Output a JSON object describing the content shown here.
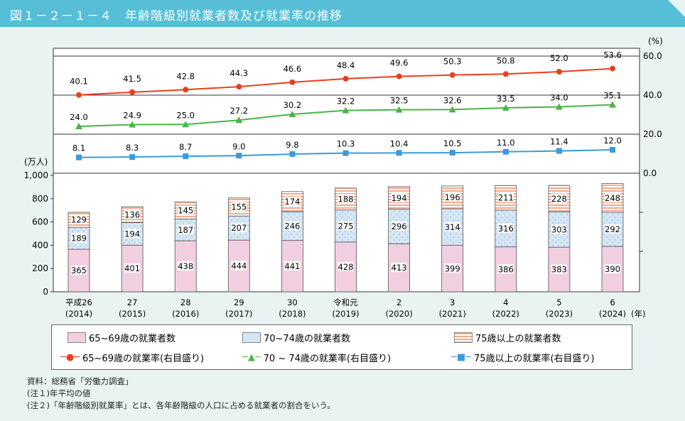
{
  "title": "図１－２－１－４　年齢階級別就業者数及び就業率の推移",
  "chart_data": {
    "type": "bar+line",
    "categories": [
      [
        "平成26",
        "(2014)"
      ],
      [
        "27",
        "(2015)"
      ],
      [
        "28",
        "(2016)"
      ],
      [
        "29",
        "(2017)"
      ],
      [
        "30",
        "(2018)"
      ],
      [
        "令和元",
        "(2019)"
      ],
      [
        "2",
        "(2020)"
      ],
      [
        "3",
        "(2021)"
      ],
      [
        "4",
        "(2022)"
      ],
      [
        "5",
        "(2023)"
      ],
      [
        "6",
        "(2024)"
      ]
    ],
    "x_unit": "(年)",
    "left_axis": {
      "label": "(万人)",
      "ticks": [
        "0",
        "200",
        "400",
        "600",
        "800",
        "1,000"
      ],
      "range": [
        0,
        1000
      ]
    },
    "right_axis": {
      "label": "(%)",
      "ticks": [
        "0.0",
        "20.0",
        "40.0",
        "60.0"
      ],
      "range": [
        0,
        60
      ]
    },
    "bar_series": [
      {
        "name": "65~69歳の就業者数",
        "color": "#f2cfe0",
        "values": [
          365,
          401,
          438,
          444,
          441,
          428,
          413,
          399,
          386,
          383,
          390
        ]
      },
      {
        "name": "70~74歳の就業者数",
        "color": "#d5e6f4",
        "values": [
          189,
          194,
          187,
          207,
          246,
          275,
          296,
          314,
          316,
          303,
          292
        ]
      },
      {
        "name": "75歳以上の就業者数",
        "color": "#f7b9a4",
        "values": [
          129,
          136,
          145,
          155,
          174,
          188,
          194,
          196,
          211,
          228,
          248
        ]
      }
    ],
    "line_series": [
      {
        "name": "65~69歳の就業率(右目盛り)",
        "color": "#e8401c",
        "marker": "circle",
        "values": [
          40.1,
          41.5,
          42.8,
          44.3,
          46.6,
          48.4,
          49.6,
          50.3,
          50.8,
          52.0,
          53.6
        ]
      },
      {
        "name": "70 ~ 74歳の就業率(右目盛り)",
        "color": "#4cb348",
        "marker": "triangle",
        "values": [
          24.0,
          24.9,
          25.0,
          27.2,
          30.2,
          32.2,
          32.5,
          32.6,
          33.5,
          34.0,
          35.1
        ]
      },
      {
        "name": "75歳以上の就業率(右目盛り)",
        "color": "#3c9ad8",
        "marker": "square",
        "values": [
          8.1,
          8.3,
          8.7,
          9.0,
          9.8,
          10.3,
          10.4,
          10.5,
          11.0,
          11.4,
          12.0
        ]
      }
    ]
  },
  "notes": [
    "資料：総務省「労働力調査」",
    "(注１)年平均の値",
    "(注２)「年齢階級別就業率」とは、各年齢階級の人口に占める就業者の割合をいう。"
  ]
}
